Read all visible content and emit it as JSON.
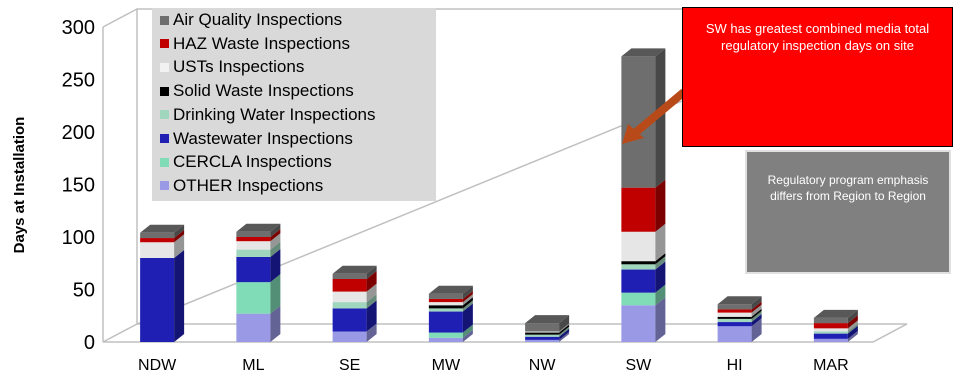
{
  "chart_data": {
    "type": "bar",
    "stacked": true,
    "three_d": true,
    "ylabel": "Days at Installation",
    "xlabel": "",
    "ylim": [
      0,
      300
    ],
    "yticks": [
      0,
      50,
      100,
      150,
      200,
      250,
      300
    ],
    "grid": false,
    "legend_position": "top-left",
    "categories": [
      "NDW",
      "ML",
      "SE",
      "MW",
      "NW",
      "SW",
      "HI",
      "MAR"
    ],
    "series": [
      {
        "name": "OTHER Inspections",
        "color": "#9999e6",
        "values": [
          0,
          27,
          10,
          4,
          2,
          35,
          15,
          3
        ]
      },
      {
        "name": "CERCLA Inspections",
        "color": "#7fdcb6",
        "values": [
          0,
          30,
          0,
          5,
          0,
          12,
          0,
          0
        ]
      },
      {
        "name": "Wastewater Inspections",
        "color": "#1f1fb4",
        "values": [
          80,
          24,
          22,
          20,
          3,
          22,
          4,
          5
        ]
      },
      {
        "name": "Drinking Water Inspections",
        "color": "#9fd6bd",
        "values": [
          0,
          7,
          6,
          3,
          2,
          5,
          3,
          2
        ]
      },
      {
        "name": "Solid Waste Inspections",
        "color": "#000000",
        "values": [
          0,
          0,
          0,
          3,
          2,
          3,
          2,
          0
        ]
      },
      {
        "name": "USTs Inspections",
        "color": "#e6e6e6",
        "values": [
          15,
          8,
          10,
          3,
          1,
          28,
          4,
          3
        ]
      },
      {
        "name": "HAZ Waste Inspections",
        "color": "#c00000",
        "values": [
          4,
          4,
          12,
          3,
          0,
          42,
          3,
          5
        ]
      },
      {
        "name": "Air Quality Inspections",
        "color": "#6e6e6e",
        "values": [
          5,
          5,
          5,
          5,
          8,
          125,
          5,
          5
        ]
      }
    ]
  },
  "annotations": {
    "red_callout": "SW has greatest combined media total regulatory inspection days on site",
    "gray_callout": "Regulatory program emphasis differs from Region to Region"
  }
}
